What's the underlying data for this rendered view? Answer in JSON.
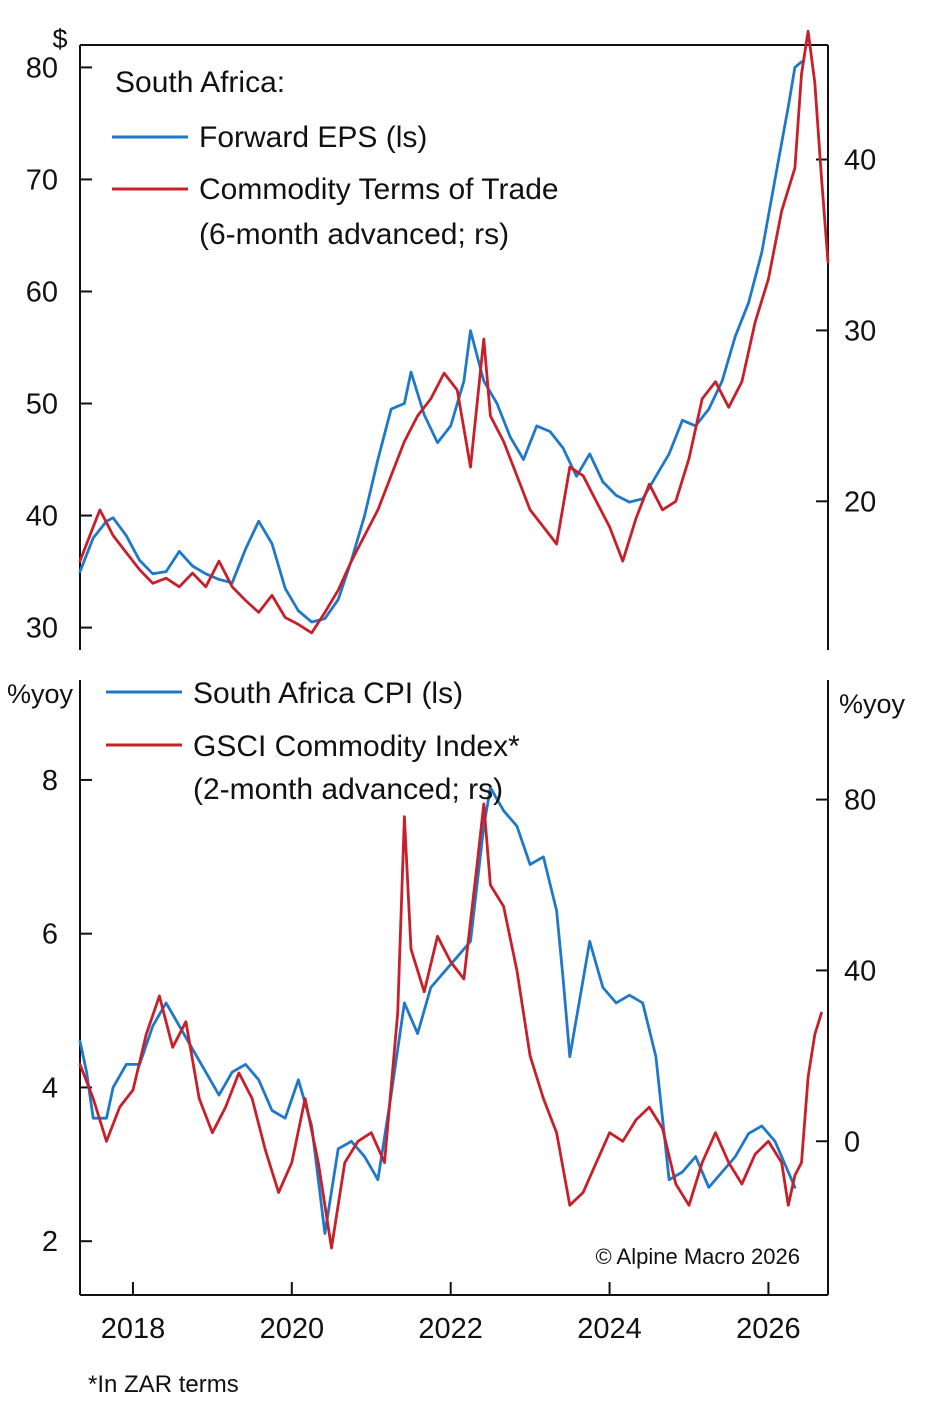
{
  "chart_data": [
    {
      "type": "line",
      "title": "South Africa:",
      "x_range": [
        "2017-05",
        "2026-10"
      ],
      "left_axis": {
        "unit": "$",
        "ticks": [
          30,
          40,
          50,
          60,
          70,
          80
        ],
        "ylim": [
          28,
          82
        ]
      },
      "right_axis": {
        "unit": "",
        "ticks": [
          20,
          30,
          40
        ],
        "ylim": [
          11.3,
          46.7
        ]
      },
      "series": [
        {
          "name": "Forward EPS (ls)",
          "axis": "left",
          "color": "#1f78c8",
          "points": [
            [
              "2017-05",
              35.0
            ],
            [
              "2017-07",
              38.0
            ],
            [
              "2017-09",
              39.5
            ],
            [
              "2017-10",
              39.8
            ],
            [
              "2017-12",
              38.2
            ],
            [
              "2018-02",
              36.0
            ],
            [
              "2018-04",
              34.8
            ],
            [
              "2018-06",
              35.0
            ],
            [
              "2018-08",
              36.8
            ],
            [
              "2018-10",
              35.5
            ],
            [
              "2018-12",
              34.8
            ],
            [
              "2019-02",
              34.3
            ],
            [
              "2019-04",
              34.0
            ],
            [
              "2019-06",
              37.0
            ],
            [
              "2019-08",
              39.5
            ],
            [
              "2019-10",
              37.5
            ],
            [
              "2019-12",
              33.5
            ],
            [
              "2020-02",
              31.5
            ],
            [
              "2020-04",
              30.5
            ],
            [
              "2020-06",
              30.8
            ],
            [
              "2020-08",
              32.5
            ],
            [
              "2020-10",
              36.0
            ],
            [
              "2020-12",
              40.0
            ],
            [
              "2021-02",
              45.0
            ],
            [
              "2021-04",
              49.5
            ],
            [
              "2021-06",
              50.0
            ],
            [
              "2021-07",
              52.8
            ],
            [
              "2021-09",
              49.0
            ],
            [
              "2021-11",
              46.5
            ],
            [
              "2022-01",
              48.0
            ],
            [
              "2022-03",
              52.0
            ],
            [
              "2022-04",
              56.5
            ],
            [
              "2022-06",
              52.0
            ],
            [
              "2022-08",
              50.0
            ],
            [
              "2022-10",
              47.0
            ],
            [
              "2022-12",
              45.0
            ],
            [
              "2023-02",
              48.0
            ],
            [
              "2023-04",
              47.5
            ],
            [
              "2023-06",
              46.0
            ],
            [
              "2023-08",
              43.5
            ],
            [
              "2023-10",
              45.5
            ],
            [
              "2023-12",
              43.0
            ],
            [
              "2024-02",
              41.8
            ],
            [
              "2024-04",
              41.2
            ],
            [
              "2024-06",
              41.5
            ],
            [
              "2024-08",
              43.5
            ],
            [
              "2024-10",
              45.5
            ],
            [
              "2024-12",
              48.5
            ],
            [
              "2025-02",
              48.0
            ],
            [
              "2025-04",
              49.5
            ],
            [
              "2025-06",
              52.0
            ],
            [
              "2025-08",
              56.0
            ],
            [
              "2025-10",
              59.0
            ],
            [
              "2025-12",
              63.5
            ],
            [
              "2026-02",
              70.0
            ],
            [
              "2026-04",
              76.5
            ],
            [
              "2026-05",
              80.0
            ],
            [
              "2026-06",
              80.5
            ]
          ]
        },
        {
          "name": "Commodity Terms of Trade (6-month advanced; rs)",
          "axis": "right",
          "color": "#c8202a",
          "points": [
            [
              "2017-05",
              16.5
            ],
            [
              "2017-07",
              18.5
            ],
            [
              "2017-08",
              19.5
            ],
            [
              "2017-10",
              18.0
            ],
            [
              "2017-12",
              17.0
            ],
            [
              "2018-02",
              16.0
            ],
            [
              "2018-04",
              15.2
            ],
            [
              "2018-06",
              15.5
            ],
            [
              "2018-08",
              15.0
            ],
            [
              "2018-10",
              15.8
            ],
            [
              "2018-12",
              15.0
            ],
            [
              "2019-02",
              16.5
            ],
            [
              "2019-04",
              15.0
            ],
            [
              "2019-06",
              14.2
            ],
            [
              "2019-08",
              13.5
            ],
            [
              "2019-10",
              14.5
            ],
            [
              "2019-12",
              13.2
            ],
            [
              "2020-02",
              12.8
            ],
            [
              "2020-04",
              12.3
            ],
            [
              "2020-06",
              13.5
            ],
            [
              "2020-08",
              14.8
            ],
            [
              "2020-10",
              16.5
            ],
            [
              "2020-12",
              18.0
            ],
            [
              "2021-02",
              19.5
            ],
            [
              "2021-04",
              21.5
            ],
            [
              "2021-06",
              23.5
            ],
            [
              "2021-08",
              25.0
            ],
            [
              "2021-10",
              26.0
            ],
            [
              "2021-12",
              27.5
            ],
            [
              "2022-02",
              26.5
            ],
            [
              "2022-04",
              22.0
            ],
            [
              "2022-06",
              29.5
            ],
            [
              "2022-07",
              25.0
            ],
            [
              "2022-09",
              23.5
            ],
            [
              "2022-11",
              21.5
            ],
            [
              "2023-01",
              19.5
            ],
            [
              "2023-03",
              18.5
            ],
            [
              "2023-05",
              17.5
            ],
            [
              "2023-07",
              22.0
            ],
            [
              "2023-09",
              21.5
            ],
            [
              "2023-11",
              20.0
            ],
            [
              "2024-01",
              18.5
            ],
            [
              "2024-03",
              16.5
            ],
            [
              "2024-05",
              19.0
            ],
            [
              "2024-07",
              21.0
            ],
            [
              "2024-09",
              19.5
            ],
            [
              "2024-11",
              20.0
            ],
            [
              "2025-01",
              22.5
            ],
            [
              "2025-03",
              26.0
            ],
            [
              "2025-05",
              27.0
            ],
            [
              "2025-07",
              25.5
            ],
            [
              "2025-09",
              27.0
            ],
            [
              "2025-11",
              30.5
            ],
            [
              "2026-01",
              33.0
            ],
            [
              "2026-03",
              37.0
            ],
            [
              "2026-05",
              39.5
            ],
            [
              "2026-06",
              45.0
            ],
            [
              "2026-07",
              47.5
            ],
            [
              "2026-08",
              44.5
            ],
            [
              "2026-09",
              39.0
            ],
            [
              "2026-10",
              34.0
            ]
          ]
        }
      ]
    },
    {
      "type": "line",
      "x_range": [
        "2017-05",
        "2026-10"
      ],
      "left_axis": {
        "unit": "%yoy",
        "ticks": [
          2,
          4,
          6,
          8
        ],
        "ylim": [
          1.3,
          9.3
        ]
      },
      "right_axis": {
        "unit": "%yoy",
        "ticks": [
          0,
          40,
          80
        ],
        "ylim": [
          -36,
          108
        ]
      },
      "series": [
        {
          "name": "South Africa CPI (ls)",
          "axis": "left",
          "color": "#1f78c8",
          "points": [
            [
              "2017-05",
              4.6
            ],
            [
              "2017-06",
              4.2
            ],
            [
              "2017-07",
              3.6
            ],
            [
              "2017-09",
              3.6
            ],
            [
              "2017-10",
              4.0
            ],
            [
              "2017-12",
              4.3
            ],
            [
              "2018-02",
              4.3
            ],
            [
              "2018-04",
              4.8
            ],
            [
              "2018-06",
              5.1
            ],
            [
              "2018-08",
              4.8
            ],
            [
              "2018-10",
              4.5
            ],
            [
              "2018-12",
              4.2
            ],
            [
              "2019-02",
              3.9
            ],
            [
              "2019-04",
              4.2
            ],
            [
              "2019-06",
              4.3
            ],
            [
              "2019-08",
              4.1
            ],
            [
              "2019-10",
              3.7
            ],
            [
              "2019-12",
              3.6
            ],
            [
              "2020-02",
              4.1
            ],
            [
              "2020-04",
              3.5
            ],
            [
              "2020-06",
              2.1
            ],
            [
              "2020-08",
              3.2
            ],
            [
              "2020-10",
              3.3
            ],
            [
              "2020-12",
              3.1
            ],
            [
              "2021-02",
              2.8
            ],
            [
              "2021-04",
              3.9
            ],
            [
              "2021-06",
              5.1
            ],
            [
              "2021-08",
              4.7
            ],
            [
              "2021-10",
              5.3
            ],
            [
              "2021-12",
              5.5
            ],
            [
              "2022-02",
              5.7
            ],
            [
              "2022-04",
              5.9
            ],
            [
              "2022-06",
              7.4
            ],
            [
              "2022-07",
              7.9
            ],
            [
              "2022-09",
              7.6
            ],
            [
              "2022-11",
              7.4
            ],
            [
              "2023-01",
              6.9
            ],
            [
              "2023-03",
              7.0
            ],
            [
              "2023-05",
              6.3
            ],
            [
              "2023-06",
              5.4
            ],
            [
              "2023-07",
              4.4
            ],
            [
              "2023-09",
              5.4
            ],
            [
              "2023-10",
              5.9
            ],
            [
              "2023-12",
              5.3
            ],
            [
              "2024-02",
              5.1
            ],
            [
              "2024-04",
              5.2
            ],
            [
              "2024-06",
              5.1
            ],
            [
              "2024-08",
              4.4
            ],
            [
              "2024-10",
              2.8
            ],
            [
              "2024-12",
              2.9
            ],
            [
              "2025-02",
              3.1
            ],
            [
              "2025-04",
              2.7
            ],
            [
              "2025-06",
              2.9
            ],
            [
              "2025-08",
              3.1
            ],
            [
              "2025-10",
              3.4
            ],
            [
              "2025-12",
              3.5
            ],
            [
              "2026-02",
              3.3
            ],
            [
              "2026-04",
              2.9
            ],
            [
              "2026-05",
              2.7
            ]
          ]
        },
        {
          "name": "GSCI Commodity Index* (2-month advanced; rs)",
          "axis": "right",
          "color": "#c8202a",
          "points": [
            [
              "2017-05",
              18.0
            ],
            [
              "2017-07",
              10.0
            ],
            [
              "2017-09",
              0.0
            ],
            [
              "2017-11",
              8.0
            ],
            [
              "2018-01",
              12.0
            ],
            [
              "2018-03",
              25.0
            ],
            [
              "2018-05",
              34.0
            ],
            [
              "2018-07",
              22.0
            ],
            [
              "2018-09",
              28.0
            ],
            [
              "2018-11",
              10.0
            ],
            [
              "2019-01",
              2.0
            ],
            [
              "2019-03",
              8.0
            ],
            [
              "2019-05",
              16.0
            ],
            [
              "2019-07",
              10.0
            ],
            [
              "2019-09",
              -2.0
            ],
            [
              "2019-11",
              -12.0
            ],
            [
              "2020-01",
              -5.0
            ],
            [
              "2020-03",
              10.0
            ],
            [
              "2020-05",
              -5.0
            ],
            [
              "2020-07",
              -25.0
            ],
            [
              "2020-09",
              -5.0
            ],
            [
              "2020-11",
              0.0
            ],
            [
              "2021-01",
              2.0
            ],
            [
              "2021-03",
              -5.0
            ],
            [
              "2021-05",
              30.0
            ],
            [
              "2021-06",
              76.0
            ],
            [
              "2021-07",
              45.0
            ],
            [
              "2021-09",
              35.0
            ],
            [
              "2021-11",
              48.0
            ],
            [
              "2022-01",
              42.0
            ],
            [
              "2022-03",
              38.0
            ],
            [
              "2022-05",
              65.0
            ],
            [
              "2022-06",
              79.0
            ],
            [
              "2022-07",
              60.0
            ],
            [
              "2022-09",
              55.0
            ],
            [
              "2022-11",
              40.0
            ],
            [
              "2023-01",
              20.0
            ],
            [
              "2023-03",
              10.0
            ],
            [
              "2023-05",
              2.0
            ],
            [
              "2023-07",
              -15.0
            ],
            [
              "2023-09",
              -12.0
            ],
            [
              "2023-11",
              -5.0
            ],
            [
              "2024-01",
              2.0
            ],
            [
              "2024-03",
              0.0
            ],
            [
              "2024-05",
              5.0
            ],
            [
              "2024-07",
              8.0
            ],
            [
              "2024-09",
              3.0
            ],
            [
              "2024-11",
              -10.0
            ],
            [
              "2025-01",
              -15.0
            ],
            [
              "2025-03",
              -5.0
            ],
            [
              "2025-05",
              2.0
            ],
            [
              "2025-07",
              -5.0
            ],
            [
              "2025-09",
              -10.0
            ],
            [
              "2025-11",
              -3.0
            ],
            [
              "2026-01",
              0.0
            ],
            [
              "2026-03",
              -5.0
            ],
            [
              "2026-04",
              -15.0
            ],
            [
              "2026-05",
              -8.0
            ],
            [
              "2026-06",
              -5.0
            ],
            [
              "2026-07",
              15.0
            ],
            [
              "2026-08",
              25.0
            ],
            [
              "2026-09",
              30.0
            ]
          ]
        }
      ],
      "credit": "© Alpine Macro 2026"
    }
  ],
  "x_ticks": [
    "2018",
    "2020",
    "2022",
    "2024",
    "2026"
  ],
  "legend_top": {
    "title": "South Africa:",
    "eps": "Forward EPS (ls)",
    "tot_1": "Commodity Terms of Trade",
    "tot_2": "(6-month advanced; rs)"
  },
  "legend_bottom": {
    "cpi": "South Africa CPI (ls)",
    "gsci_1": "GSCI Commodity Index*",
    "gsci_2": "(2-month advanced; rs)"
  },
  "units": {
    "top_left": "$",
    "bottom_left": "%yoy",
    "bottom_right": "%yoy"
  },
  "credit": "© Alpine Macro 2026",
  "footnote": "*In ZAR terms",
  "colors": {
    "blue": "#1f78c8",
    "red": "#c8202a"
  }
}
